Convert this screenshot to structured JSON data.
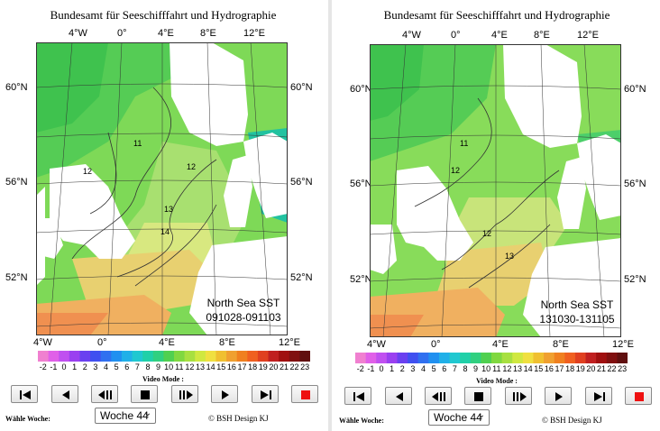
{
  "panels": [
    {
      "title": "Bundesamt für Seeschifffahrt und Hydrographie",
      "top_lon_labels": [
        "4°W",
        "0°",
        "4°E",
        "8°E",
        "12°E"
      ],
      "bottom_lon_labels": [
        "4°W",
        "0°",
        "4°E",
        "8°E",
        "12°E"
      ],
      "lat_labels": [
        "60°N",
        "56°N",
        "52°N"
      ],
      "sst_title": "North Sea SST",
      "sst_period": "091028-091103",
      "isotherm_labels": [
        "11",
        "12",
        "12",
        "13",
        "14"
      ],
      "colorbar_labels": [
        "-2",
        "-1",
        "0",
        "1",
        "2",
        "3",
        "4",
        "5",
        "6",
        "7",
        "8",
        "9",
        "10",
        "11",
        "12",
        "13",
        "14",
        "15",
        "16",
        "17",
        "18",
        "19",
        "20",
        "21",
        "22",
        "23"
      ],
      "video_mode_label": "Video Mode :",
      "week_label": "Wähle Woche:",
      "week_value": "Woche 44",
      "copyright": "© BSH Design KJ"
    },
    {
      "title": "Bundesamt für Seeschifffahrt und Hydrographie",
      "top_lon_labels": [
        "4°W",
        "0°",
        "4°E",
        "8°E",
        "12°E"
      ],
      "bottom_lon_labels": [
        "4°W",
        "0°",
        "4°E",
        "8°E",
        "12°E"
      ],
      "lat_labels": [
        "60°N",
        "56°N",
        "52°N"
      ],
      "sst_title": "North Sea SST",
      "sst_period": "131030-131105",
      "isotherm_labels": [
        "11",
        "12",
        "12",
        "13"
      ],
      "colorbar_labels": [
        "-2",
        "-1",
        "0",
        "1",
        "2",
        "3",
        "4",
        "5",
        "6",
        "7",
        "8",
        "9",
        "10",
        "11",
        "12",
        "13",
        "14",
        "15",
        "16",
        "17",
        "18",
        "19",
        "20",
        "21",
        "22",
        "23"
      ],
      "video_mode_label": "Video Mode :",
      "week_label": "Wähle Woche:",
      "week_value": "Woche 44",
      "copyright": "© BSH Design KJ"
    }
  ],
  "controls": [
    "skip-to-start",
    "step-back",
    "play-backward",
    "stop",
    "play-forward",
    "step-forward",
    "skip-to-end",
    "record-stop"
  ],
  "colors": {
    "sea_green": "#7ed957",
    "sea_warm": "#f0b860",
    "land": "#ffffff",
    "record_red": "#ee1111"
  }
}
